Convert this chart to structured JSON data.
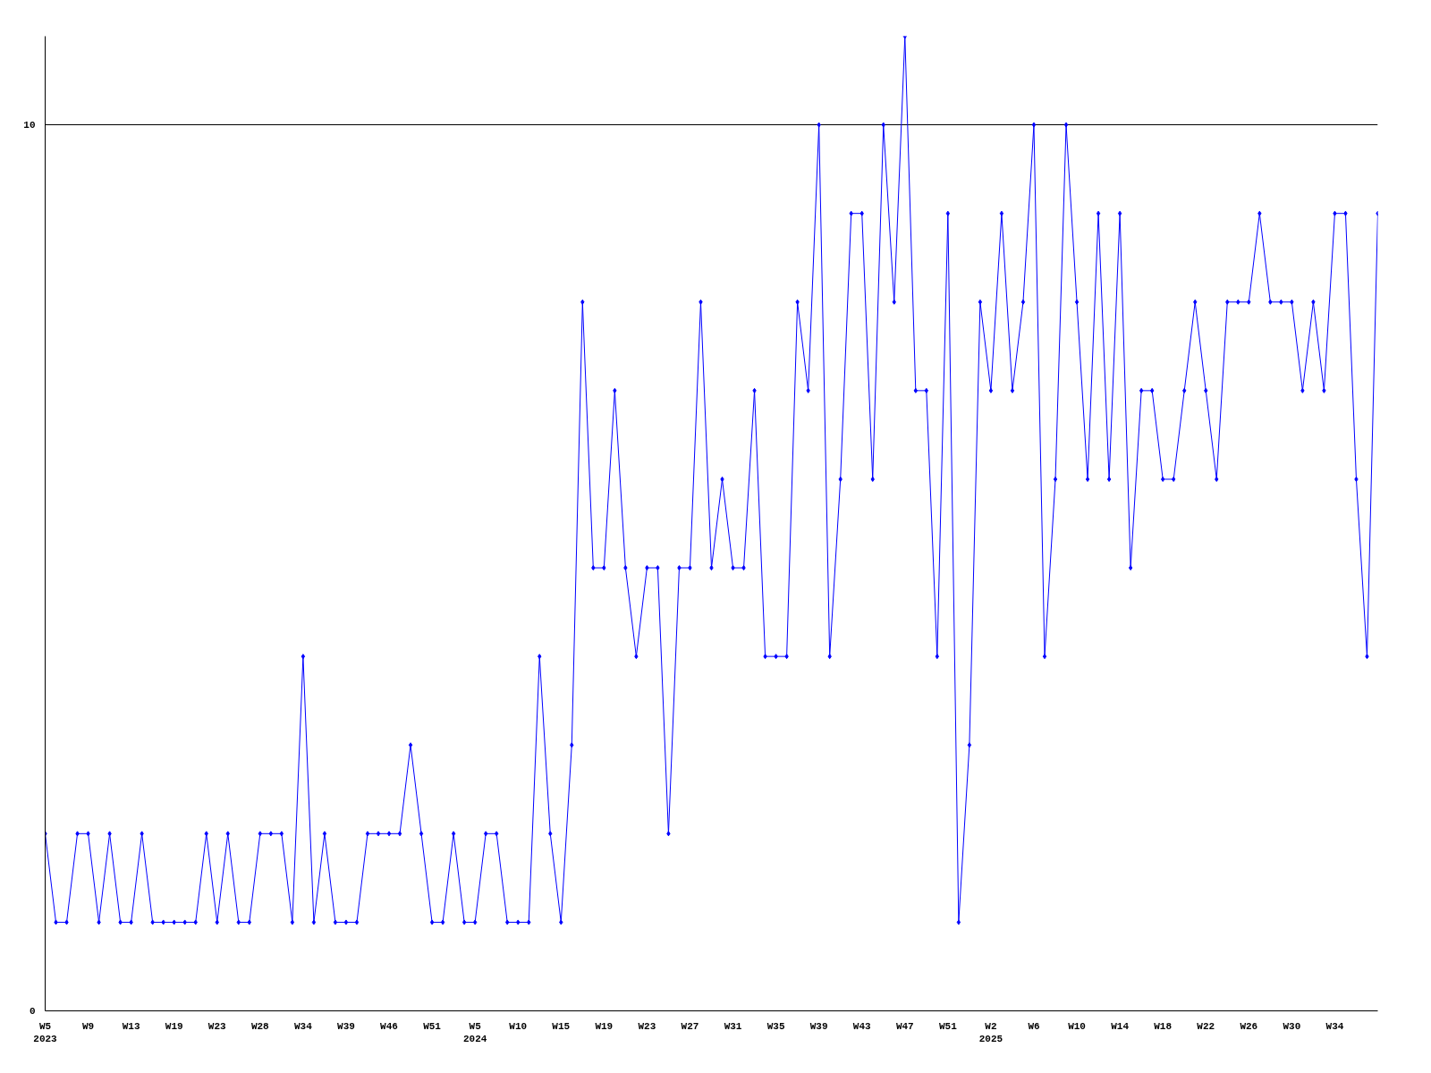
{
  "chart_data": {
    "type": "line",
    "marker": "diamond",
    "grid": "y",
    "ylim": [
      0,
      11
    ],
    "yticks": [
      0,
      10
    ],
    "categories": [
      "W5\n2023",
      null,
      null,
      null,
      "W9",
      null,
      null,
      null,
      "W13",
      null,
      null,
      null,
      "W19",
      null,
      null,
      null,
      "W23",
      null,
      null,
      null,
      "W28",
      null,
      null,
      null,
      "W34",
      null,
      null,
      null,
      "W39",
      null,
      null,
      null,
      "W46",
      null,
      null,
      null,
      "W51",
      null,
      null,
      null,
      "W5\n2024",
      null,
      null,
      null,
      "W10",
      null,
      null,
      null,
      "W15",
      null,
      null,
      null,
      "W19",
      null,
      null,
      null,
      "W23",
      null,
      null,
      null,
      "W27",
      null,
      null,
      null,
      "W31",
      null,
      null,
      null,
      "W35",
      null,
      null,
      null,
      "W39",
      null,
      null,
      null,
      "W43",
      null,
      null,
      null,
      "W47",
      null,
      null,
      null,
      "W51",
      null,
      null,
      null,
      "W2\n2025",
      null,
      null,
      null,
      "W6",
      null,
      null,
      null,
      "W10",
      null,
      null,
      null,
      "W14",
      null,
      null,
      null,
      "W18",
      null,
      null,
      null,
      "W22",
      null,
      null,
      null,
      "W26",
      null,
      null,
      null,
      "W30",
      null,
      null,
      null,
      "W34",
      null,
      null,
      null,
      null
    ],
    "series": [
      {
        "color": "#0000ff",
        "values": [
          2,
          1,
          1,
          2,
          2,
          1,
          2,
          1,
          1,
          2,
          1,
          1,
          1,
          1,
          1,
          2,
          1,
          2,
          1,
          1,
          2,
          2,
          2,
          1,
          4,
          1,
          2,
          1,
          1,
          1,
          2,
          2,
          2,
          2,
          3,
          2,
          1,
          1,
          2,
          1,
          1,
          2,
          2,
          1,
          1,
          1,
          4,
          2,
          1,
          3,
          8,
          5,
          5,
          7,
          5,
          4,
          5,
          5,
          2,
          5,
          5,
          8,
          5,
          6,
          5,
          5,
          7,
          4,
          4,
          4,
          8,
          7,
          10,
          4,
          6,
          9,
          9,
          6,
          10,
          8,
          11,
          7,
          7,
          4,
          9,
          1,
          3,
          8,
          7,
          9,
          7,
          8,
          10,
          4,
          6,
          10,
          8,
          6,
          9,
          6,
          9,
          5,
          7,
          7,
          6,
          6,
          7,
          8,
          7,
          6,
          8,
          8,
          8,
          9,
          8,
          8,
          8,
          7,
          8,
          7,
          9,
          9,
          6,
          4,
          9
        ]
      }
    ]
  }
}
